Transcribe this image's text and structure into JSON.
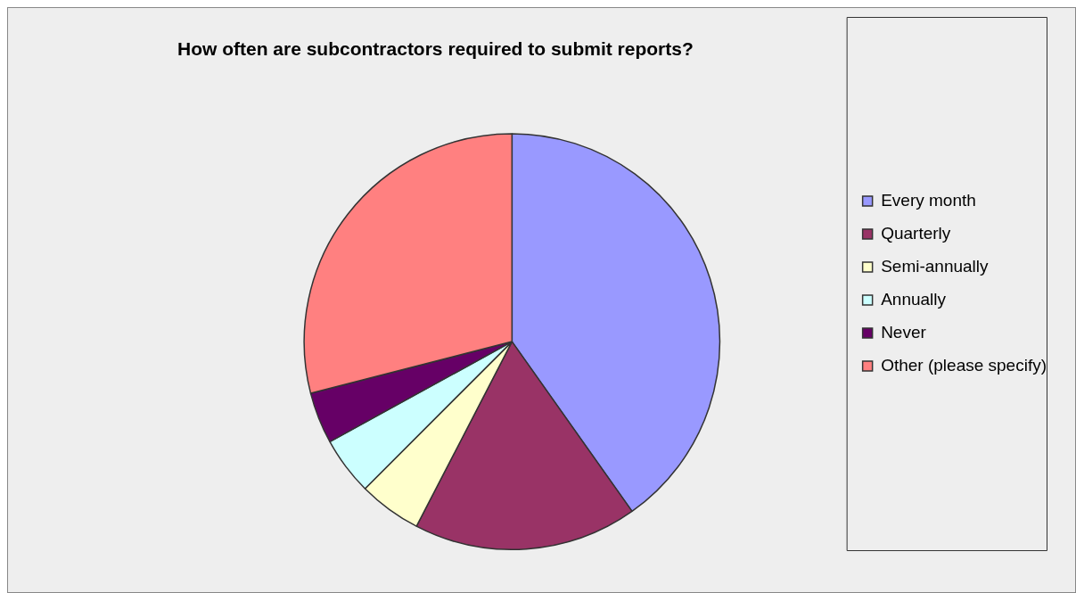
{
  "chart_data": {
    "type": "pie",
    "title": "How often are subcontractors required to submit reports?",
    "categories": [
      "Every month",
      "Quarterly",
      "Semi-annually",
      "Annually",
      "Never",
      "Other (please specify)"
    ],
    "values": [
      40.2,
      17.4,
      4.9,
      4.5,
      4.0,
      29.0
    ],
    "colors": [
      "#9999ff",
      "#993366",
      "#ffffcc",
      "#ccffff",
      "#660066",
      "#ff8080"
    ],
    "legend": "right"
  }
}
